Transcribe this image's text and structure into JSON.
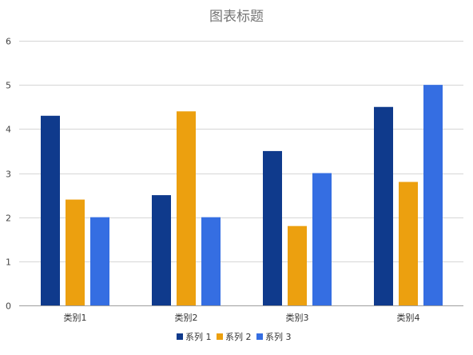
{
  "chart_data": {
    "type": "bar",
    "title": "图表标题",
    "xlabel": "",
    "ylabel": "",
    "categories": [
      "类别1",
      "类别2",
      "类别3",
      "类别4"
    ],
    "series": [
      {
        "name": "系列 1",
        "color": "#0f3a8c",
        "values": [
          4.3,
          2.5,
          3.5,
          4.5
        ]
      },
      {
        "name": "系列 2",
        "color": "#eca00f",
        "values": [
          2.4,
          4.4,
          1.8,
          2.8
        ]
      },
      {
        "name": "系列 3",
        "color": "#356ee2",
        "values": [
          2.0,
          2.0,
          3.0,
          5.0
        ]
      }
    ],
    "ylim": [
      0,
      6
    ],
    "yticks": [
      "0",
      "1",
      "2",
      "3",
      "4",
      "5",
      "6"
    ],
    "grid": true,
    "legend_position": "bottom"
  }
}
